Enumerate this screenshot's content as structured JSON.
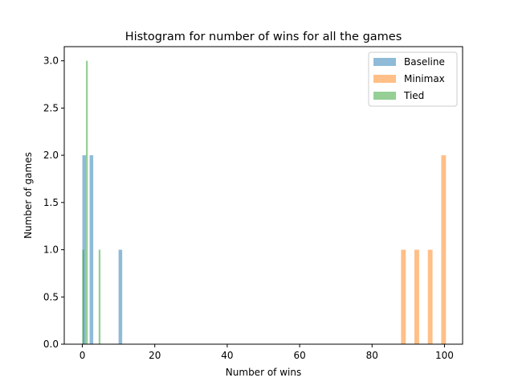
{
  "chart_data": {
    "type": "bar",
    "title": "Histogram for number of wins for all the games",
    "xlabel": "Number of wins",
    "ylabel": "Number of games",
    "xlim": [
      -5,
      105
    ],
    "ylim": [
      0,
      3.15
    ],
    "xticks": [
      0,
      20,
      40,
      60,
      80,
      100
    ],
    "yticks": [
      0.0,
      0.5,
      1.0,
      1.5,
      2.0,
      2.5,
      3.0
    ],
    "grid": false,
    "legend_position": "top-right",
    "series": [
      {
        "name": "Baseline",
        "color": "#1f77b4",
        "opacity": 0.5,
        "bins": [
          {
            "start": 0.0,
            "end": 1.0,
            "count": 2
          },
          {
            "start": 2.0,
            "end": 3.0,
            "count": 2
          },
          {
            "start": 10.0,
            "end": 11.0,
            "count": 1
          }
        ]
      },
      {
        "name": "Minimax",
        "color": "#ff7f0e",
        "opacity": 0.5,
        "bins": [
          {
            "start": 88.0,
            "end": 89.3,
            "count": 1
          },
          {
            "start": 91.7,
            "end": 93.0,
            "count": 1
          },
          {
            "start": 95.4,
            "end": 96.7,
            "count": 1
          },
          {
            "start": 99.1,
            "end": 100.4,
            "count": 2
          }
        ]
      },
      {
        "name": "Tied",
        "color": "#2ca02c",
        "opacity": 0.5,
        "bins": [
          {
            "start": 0.0,
            "end": 0.5,
            "count": 1
          },
          {
            "start": 1.0,
            "end": 1.5,
            "count": 3
          },
          {
            "start": 4.5,
            "end": 5.0,
            "count": 1
          }
        ]
      }
    ]
  }
}
